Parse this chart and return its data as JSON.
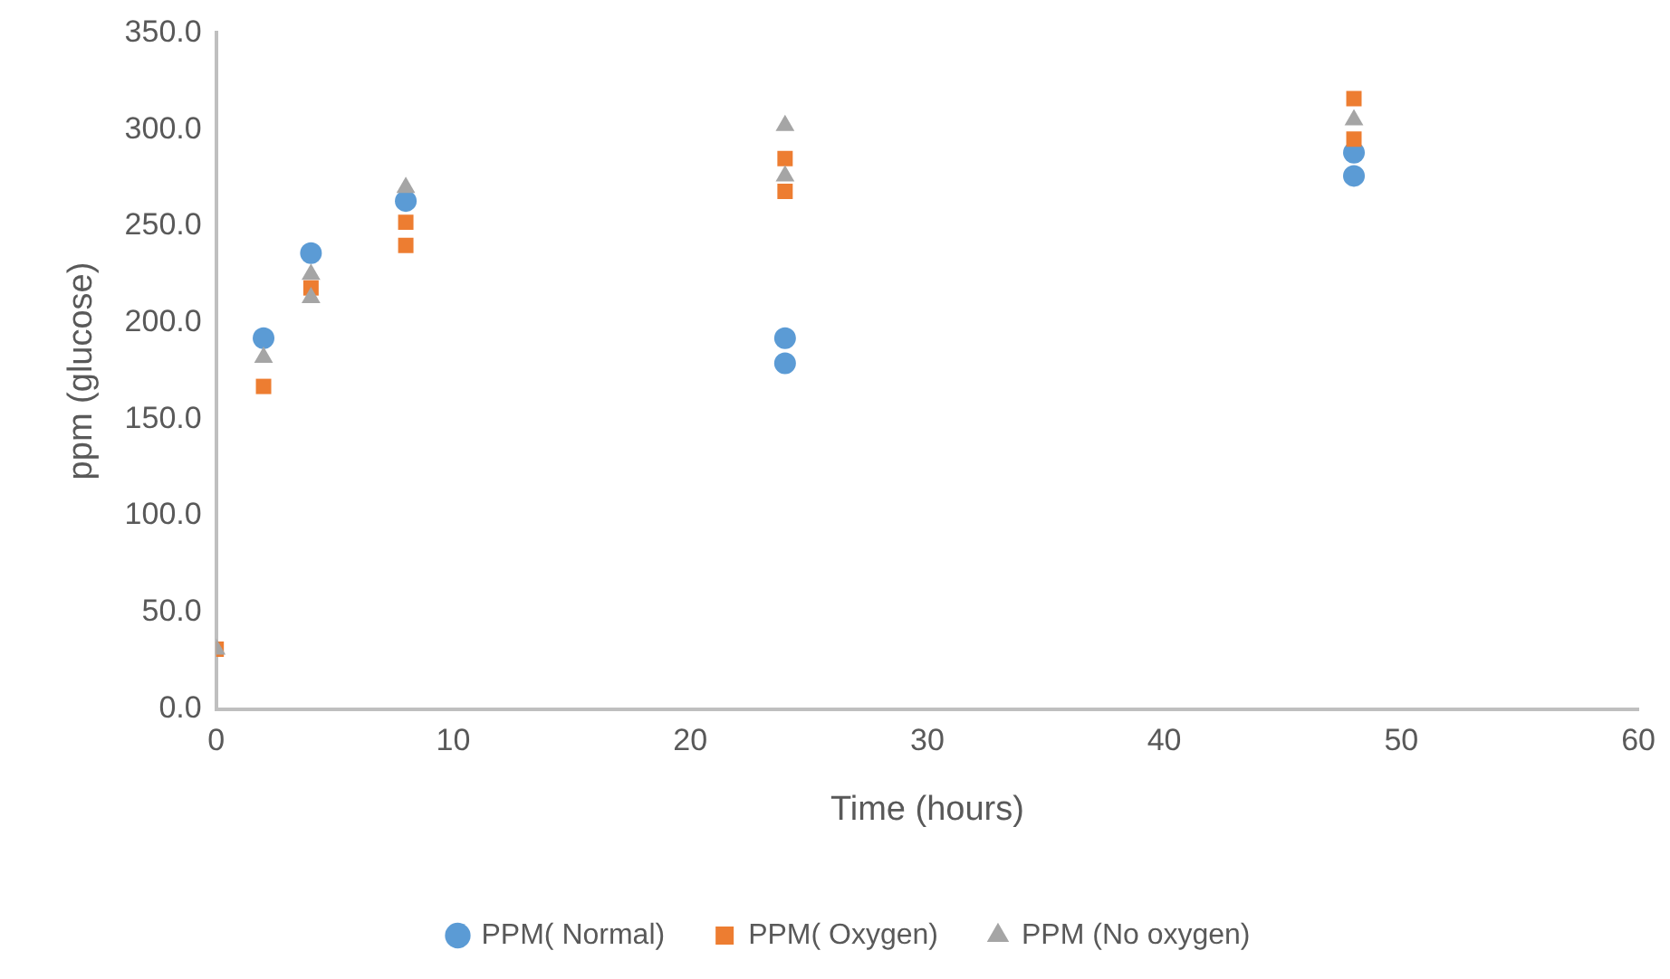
{
  "chart_data": {
    "type": "scatter",
    "xlabel": "Time (hours)",
    "ylabel": "ppm (glucose)",
    "xlim": [
      0,
      60
    ],
    "xticks": [
      0,
      10,
      20,
      30,
      40,
      50,
      60
    ],
    "ylim": [
      0,
      350
    ],
    "yticks": [
      {
        "value": 0,
        "label": "0.0"
      },
      {
        "value": 50,
        "label": "50.0"
      },
      {
        "value": 100,
        "label": "100.0"
      },
      {
        "value": 150,
        "label": "150.0"
      },
      {
        "value": 200,
        "label": "200.0"
      },
      {
        "value": 250,
        "label": "250.0"
      },
      {
        "value": 300,
        "label": "300.0"
      },
      {
        "value": 350,
        "label": "350.0"
      }
    ],
    "grid": false,
    "legend": "bottom",
    "series": [
      {
        "name": "PPM( Normal)",
        "color": "#5b9bd5",
        "marker": "circle",
        "x": [
          2,
          4,
          8,
          24,
          24,
          48,
          48
        ],
        "values": [
          192,
          236,
          263,
          192,
          179,
          288,
          276
        ]
      },
      {
        "name": "PPM( Oxygen)",
        "color": "#ed7d31",
        "marker": "square",
        "x": [
          0,
          2,
          4,
          8,
          8,
          24,
          24,
          48,
          48
        ],
        "values": [
          31,
          167,
          218,
          240,
          252,
          268,
          285,
          316,
          295
        ]
      },
      {
        "name": "PPM (No oxygen)",
        "color": "#a5a5a5",
        "marker": "triangle",
        "x": [
          0,
          2,
          4,
          4,
          8,
          24,
          24,
          48
        ],
        "values": [
          31,
          182,
          213,
          225,
          270,
          302,
          276,
          305
        ]
      }
    ]
  }
}
